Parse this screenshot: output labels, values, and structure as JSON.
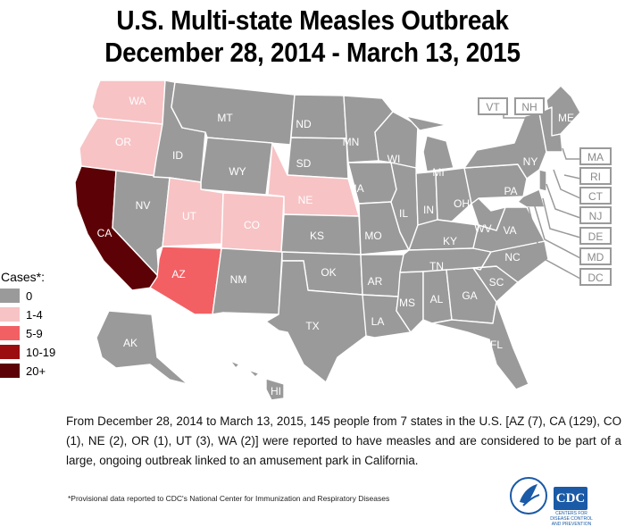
{
  "title": {
    "line1": "U.S. Multi-state Measles Outbreak",
    "line2": "December 28, 2014 - March 13, 2015"
  },
  "legend": {
    "title": "Cases*:",
    "items": [
      {
        "label": "0",
        "color": "#9a9a9a"
      },
      {
        "label": "1-4",
        "color": "#f7c3c5"
      },
      {
        "label": "5-9",
        "color": "#f26063"
      },
      {
        "label": "10-19",
        "color": "#9b0d0f"
      },
      {
        "label": "20+",
        "color": "#5c0206"
      }
    ]
  },
  "states": {
    "WA": {
      "label": "WA",
      "cases": 2
    },
    "OR": {
      "label": "OR",
      "cases": 1
    },
    "CA": {
      "label": "CA",
      "cases": 129
    },
    "UT": {
      "label": "UT",
      "cases": 3
    },
    "CO": {
      "label": "CO",
      "cases": 1
    },
    "NE": {
      "label": "NE",
      "cases": 2
    },
    "AZ": {
      "label": "AZ",
      "cases": 7
    },
    "MT": {
      "label": "MT"
    },
    "ID": {
      "label": "ID"
    },
    "WY": {
      "label": "WY"
    },
    "NV": {
      "label": "NV"
    },
    "NM": {
      "label": "NM"
    },
    "ND": {
      "label": "ND"
    },
    "SD": {
      "label": "SD"
    },
    "KS": {
      "label": "KS"
    },
    "OK": {
      "label": "OK"
    },
    "TX": {
      "label": "TX"
    },
    "MN": {
      "label": "MN"
    },
    "IA": {
      "label": "IA"
    },
    "MO": {
      "label": "MO"
    },
    "AR": {
      "label": "AR"
    },
    "LA": {
      "label": "LA"
    },
    "WI": {
      "label": "WI"
    },
    "IL": {
      "label": "IL"
    },
    "MI": {
      "label": "MI"
    },
    "IN": {
      "label": "IN"
    },
    "OH": {
      "label": "OH"
    },
    "KY": {
      "label": "KY"
    },
    "TN": {
      "label": "TN"
    },
    "MS": {
      "label": "MS"
    },
    "AL": {
      "label": "AL"
    },
    "GA": {
      "label": "GA"
    },
    "FL": {
      "label": "FL"
    },
    "SC": {
      "label": "SC"
    },
    "NC": {
      "label": "NC"
    },
    "VA": {
      "label": "VA"
    },
    "WV": {
      "label": "WV"
    },
    "PA": {
      "label": "PA"
    },
    "NY": {
      "label": "NY"
    },
    "ME": {
      "label": "ME"
    },
    "AK": {
      "label": "AK"
    },
    "HI": {
      "label": "HI"
    }
  },
  "small_states": [
    "VT",
    "NH",
    "MA",
    "RI",
    "CT",
    "NJ",
    "DE",
    "MD",
    "DC"
  ],
  "paragraph": "From December 28, 2014 to March 13, 2015, 145 people from 7 states in the U.S. [AZ (7), CA (129), CO (1), NE (2), OR (1), UT (3), WA (2)] were reported to have measles and are considered to be part of a large, ongoing outbreak linked to an amusement park in California.",
  "footnote": "*Provisional data reported to CDC's National Center for Immunization and Respiratory Diseases",
  "logo": {
    "cdc": "CDC",
    "cdc_caption": "CENTERS FOR DISEASE CONTROL AND PREVENTION"
  }
}
